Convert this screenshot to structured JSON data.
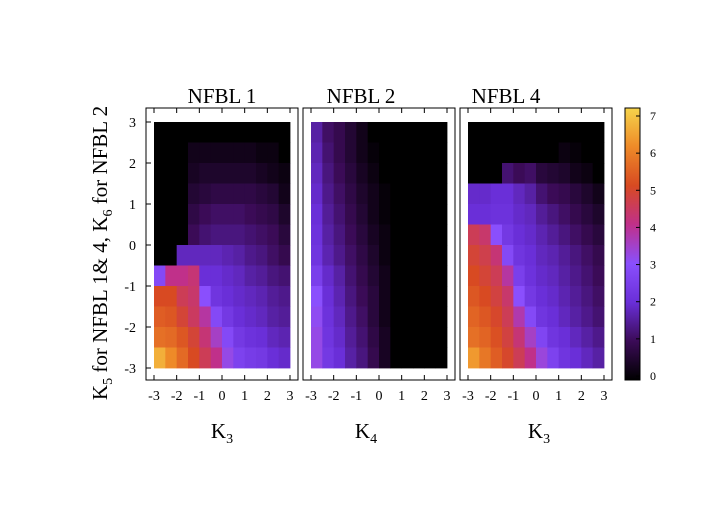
{
  "ylabel": {
    "k5_main": "K",
    "k5_sub": "5",
    "middle": " for NFBL 1& 4, K",
    "k6_sub": "6",
    "end": " for NFBL 2"
  },
  "colorbar": {
    "min": 0,
    "max": 7,
    "ticks": [
      "0",
      "1",
      "2",
      "3",
      "4",
      "5",
      "6",
      "7"
    ],
    "stops": [
      "#000000",
      "#3b0b57",
      "#6a2fd8",
      "#8a4ffd",
      "#c0308a",
      "#d84a22",
      "#ee8a28",
      "#f6d44b"
    ]
  },
  "chart_data": [
    {
      "type": "heatmap",
      "title": "NFBL 1",
      "xlabel_main": "K",
      "xlabel_sub": "3",
      "xticks": [
        "-3",
        "-2",
        "-1",
        "0",
        "1",
        "2",
        "3"
      ],
      "yticks": [
        "3",
        "2",
        "1",
        "0",
        "-1",
        "-2",
        "-3"
      ],
      "xlim": [
        -3,
        3
      ],
      "ylim": [
        -3,
        3
      ],
      "x": [
        -2.75,
        -2.25,
        -1.75,
        -1.25,
        -0.75,
        -0.25,
        0.25,
        0.75,
        1.25,
        1.75,
        2.25,
        2.75
      ],
      "y": [
        2.75,
        2.25,
        1.75,
        1.25,
        0.75,
        0.25,
        -0.25,
        -0.75,
        -1.25,
        -1.75,
        -2.25,
        -2.75
      ],
      "z": [
        [
          0,
          0,
          0,
          0,
          0,
          0,
          0,
          0,
          0,
          0,
          0,
          0
        ],
        [
          0,
          0,
          0,
          0.3,
          0.3,
          0.3,
          0.3,
          0.3,
          0.3,
          0.2,
          0.2,
          0
        ],
        [
          0,
          0,
          0,
          0.4,
          0.5,
          0.5,
          0.5,
          0.5,
          0.5,
          0.4,
          0.3,
          0.2
        ],
        [
          0,
          0,
          0,
          0.6,
          0.7,
          0.8,
          0.8,
          0.8,
          0.8,
          0.7,
          0.6,
          0.3
        ],
        [
          0,
          0,
          0,
          0.8,
          1.0,
          1.1,
          1.1,
          1.1,
          1.0,
          0.9,
          0.8,
          0.5
        ],
        [
          0,
          0,
          0,
          1.0,
          1.2,
          1.3,
          1.3,
          1.3,
          1.2,
          1.1,
          1.0,
          0.7
        ],
        [
          0,
          0,
          1.8,
          1.8,
          1.8,
          1.8,
          1.7,
          1.6,
          1.4,
          1.3,
          1.1,
          0.9
        ],
        [
          2.8,
          4.0,
          4.0,
          4.2,
          2.0,
          2.0,
          1.9,
          1.8,
          1.6,
          1.5,
          1.3,
          1.2
        ],
        [
          5.0,
          5.0,
          4.5,
          4.3,
          3.0,
          2.2,
          2.0,
          1.9,
          1.8,
          1.7,
          1.5,
          1.4
        ],
        [
          5.3,
          5.2,
          4.8,
          4.4,
          3.8,
          2.8,
          2.3,
          2.0,
          1.9,
          1.8,
          1.6,
          1.5
        ],
        [
          5.6,
          5.5,
          5.2,
          4.8,
          4.2,
          3.5,
          2.8,
          2.3,
          2.1,
          2.0,
          1.8,
          1.7
        ],
        [
          6.5,
          6.0,
          5.5,
          5.0,
          4.5,
          4.0,
          3.2,
          2.6,
          2.4,
          2.3,
          2.0,
          1.9
        ]
      ]
    },
    {
      "type": "heatmap",
      "title": "NFBL 2",
      "xlabel_main": "K",
      "xlabel_sub": "4",
      "xticks": [
        "-3",
        "-2",
        "-1",
        "0",
        "1",
        "2",
        "3"
      ],
      "yticks": [],
      "xlim": [
        -3,
        3
      ],
      "ylim": [
        -3,
        3
      ],
      "x": [
        -2.75,
        -2.25,
        -1.75,
        -1.25,
        -0.75,
        -0.25,
        0.25,
        0.75,
        1.25,
        1.75,
        2.25,
        2.75
      ],
      "y": [
        2.75,
        2.25,
        1.75,
        1.25,
        0.75,
        0.25,
        -0.25,
        -0.75,
        -1.25,
        -1.75,
        -2.25,
        -2.75
      ],
      "z": [
        [
          1.6,
          1.1,
          0.9,
          0.6,
          0.3,
          0,
          0,
          0,
          0,
          0,
          0,
          0
        ],
        [
          1.7,
          1.2,
          0.9,
          0.6,
          0.3,
          0.1,
          0,
          0,
          0,
          0,
          0,
          0
        ],
        [
          1.8,
          1.3,
          1.0,
          0.7,
          0.4,
          0.2,
          0,
          0,
          0,
          0,
          0,
          0
        ],
        [
          1.9,
          1.4,
          1.1,
          0.8,
          0.5,
          0.3,
          0.1,
          0,
          0,
          0,
          0,
          0
        ],
        [
          2.0,
          1.5,
          1.2,
          0.9,
          0.6,
          0.3,
          0.1,
          0,
          0,
          0,
          0,
          0
        ],
        [
          2.1,
          1.6,
          1.3,
          1.0,
          0.7,
          0.4,
          0.2,
          0,
          0,
          0,
          0,
          0
        ],
        [
          2.2,
          1.7,
          1.4,
          1.1,
          0.8,
          0.5,
          0.2,
          0,
          0,
          0,
          0,
          0
        ],
        [
          2.5,
          1.9,
          1.6,
          1.2,
          0.9,
          0.6,
          0.3,
          0,
          0,
          0,
          0,
          0
        ],
        [
          3.0,
          2.0,
          1.7,
          1.3,
          1.0,
          0.7,
          0.3,
          0,
          0,
          0,
          0,
          0
        ],
        [
          3.1,
          2.1,
          1.8,
          1.4,
          1.1,
          0.7,
          0.3,
          0,
          0,
          0,
          0,
          0
        ],
        [
          3.2,
          2.2,
          1.9,
          1.5,
          1.2,
          0.8,
          0.4,
          0,
          0,
          0,
          0,
          0
        ],
        [
          3.2,
          2.3,
          2.0,
          1.6,
          1.3,
          0.9,
          0.4,
          0,
          0,
          0,
          0,
          0
        ]
      ]
    },
    {
      "type": "heatmap",
      "title": "NFBL 4",
      "xlabel_main": "K",
      "xlabel_sub": "3",
      "xticks": [
        "-3",
        "-2",
        "-1",
        "0",
        "1",
        "2",
        "3"
      ],
      "yticks": [],
      "xlim": [
        -3,
        3
      ],
      "ylim": [
        -3,
        3
      ],
      "x": [
        -2.75,
        -2.25,
        -1.75,
        -1.25,
        -0.75,
        -0.25,
        0.25,
        0.75,
        1.25,
        1.75,
        2.25,
        2.75
      ],
      "y": [
        2.75,
        2.25,
        1.75,
        1.25,
        0.75,
        0.25,
        -0.25,
        -0.75,
        -1.25,
        -1.75,
        -2.25,
        -2.75
      ],
      "z": [
        [
          0,
          0,
          0,
          0,
          0,
          0,
          0,
          0,
          0,
          0,
          0,
          0
        ],
        [
          0,
          0,
          0,
          0,
          0,
          0,
          0,
          0,
          0.2,
          0.1,
          0,
          0
        ],
        [
          0,
          0,
          0,
          1.2,
          1.0,
          1.1,
          0.7,
          0.6,
          0.5,
          0.3,
          0.2,
          0
        ],
        [
          1.9,
          1.9,
          2.0,
          2.0,
          1.8,
          1.6,
          1.2,
          1.0,
          0.9,
          0.7,
          0.5,
          0.3
        ],
        [
          2.0,
          2.0,
          2.1,
          2.1,
          1.9,
          1.8,
          1.5,
          1.3,
          1.1,
          0.9,
          0.7,
          0.5
        ],
        [
          4.5,
          4.3,
          3.0,
          2.3,
          2.0,
          1.9,
          1.7,
          1.5,
          1.3,
          1.1,
          0.9,
          0.7
        ],
        [
          4.8,
          4.6,
          4.2,
          2.8,
          2.2,
          2.0,
          1.8,
          1.7,
          1.5,
          1.3,
          1.1,
          0.9
        ],
        [
          5.0,
          4.8,
          4.5,
          3.8,
          2.5,
          2.1,
          1.9,
          1.8,
          1.6,
          1.4,
          1.2,
          1.0
        ],
        [
          5.2,
          5.0,
          4.7,
          4.3,
          3.0,
          2.3,
          2.0,
          1.9,
          1.7,
          1.5,
          1.3,
          1.1
        ],
        [
          5.4,
          5.2,
          4.9,
          4.5,
          3.7,
          2.8,
          2.2,
          2.0,
          1.8,
          1.6,
          1.4,
          1.2
        ],
        [
          5.6,
          5.4,
          5.1,
          4.7,
          4.2,
          3.5,
          2.7,
          2.2,
          2.0,
          1.8,
          1.6,
          1.4
        ],
        [
          6.2,
          5.7,
          5.3,
          4.9,
          4.5,
          4.0,
          3.3,
          2.6,
          2.2,
          2.0,
          1.8,
          1.6
        ]
      ]
    }
  ]
}
